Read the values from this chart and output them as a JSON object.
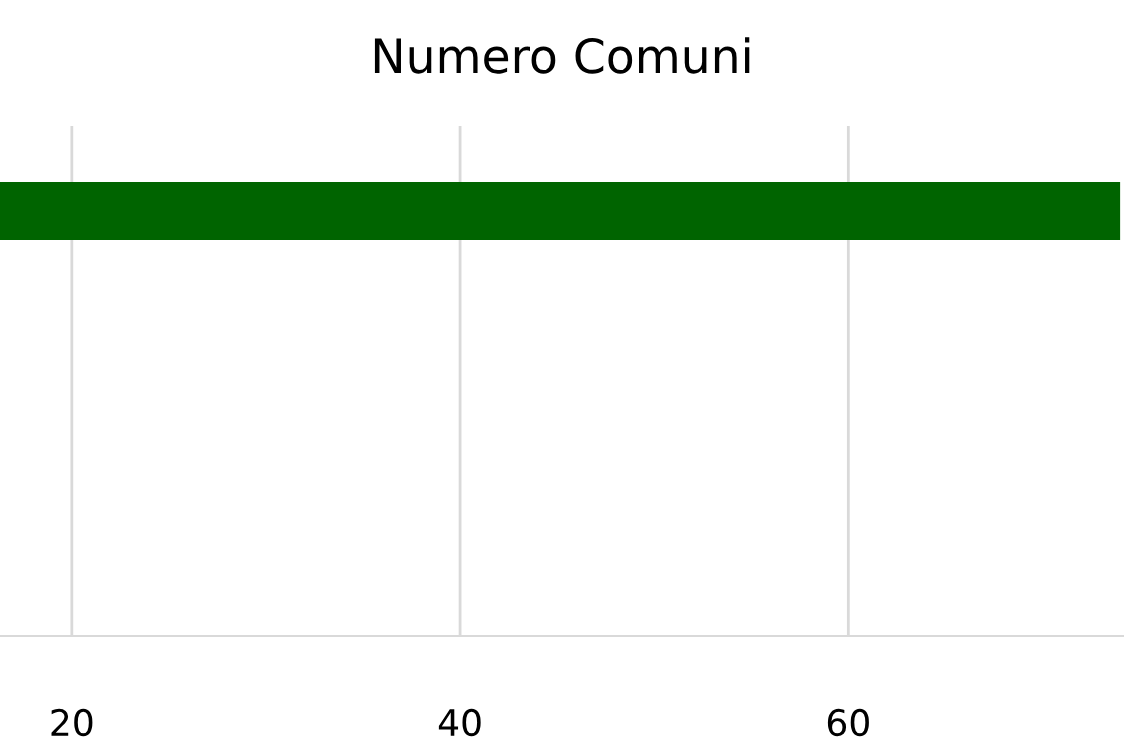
{
  "chart_data": {
    "type": "bar",
    "orientation": "horizontal",
    "title": "Numero Comuni",
    "categories": [
      null,
      null,
      null
    ],
    "values": [
      74,
      null,
      null
    ],
    "color": "#006400",
    "xlim": [
      16.3,
      74.2
    ],
    "xticks": [
      20,
      40,
      60
    ],
    "grid": "x",
    "tick_labels": "x"
  }
}
